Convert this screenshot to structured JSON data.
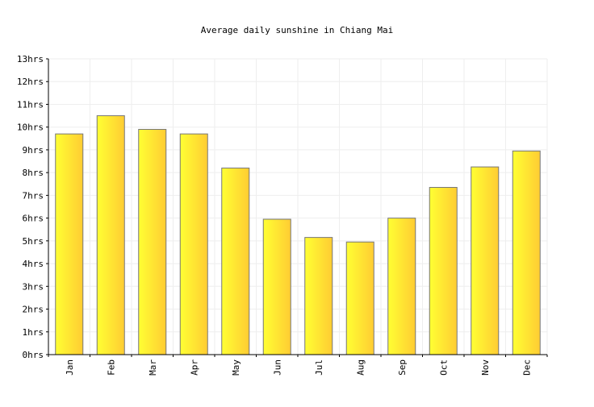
{
  "chart_data": {
    "type": "bar",
    "title": "Average daily sunshine in Chiang Mai",
    "xlabel": "",
    "ylabel": "",
    "categories": [
      "Jan",
      "Feb",
      "Mar",
      "Apr",
      "May",
      "Jun",
      "Jul",
      "Aug",
      "Sep",
      "Oct",
      "Nov",
      "Dec"
    ],
    "values": [
      9.7,
      10.5,
      9.9,
      9.7,
      8.2,
      5.95,
      5.15,
      4.95,
      6.0,
      7.35,
      8.25,
      8.95
    ],
    "ylim": [
      0,
      13
    ],
    "yticks": [
      "0hrs",
      "1hrs",
      "2hrs",
      "3hrs",
      "4hrs",
      "5hrs",
      "6hrs",
      "7hrs",
      "8hrs",
      "9hrs",
      "10hrs",
      "11hrs",
      "12hrs",
      "13hrs"
    ],
    "grid": true,
    "legend": "none",
    "colors": {
      "bar_light": "#ffff33",
      "bar_dark": "#ffcc33",
      "bar_stroke": "#777777",
      "grid": "#eeeeee",
      "axis": "#000000"
    }
  }
}
